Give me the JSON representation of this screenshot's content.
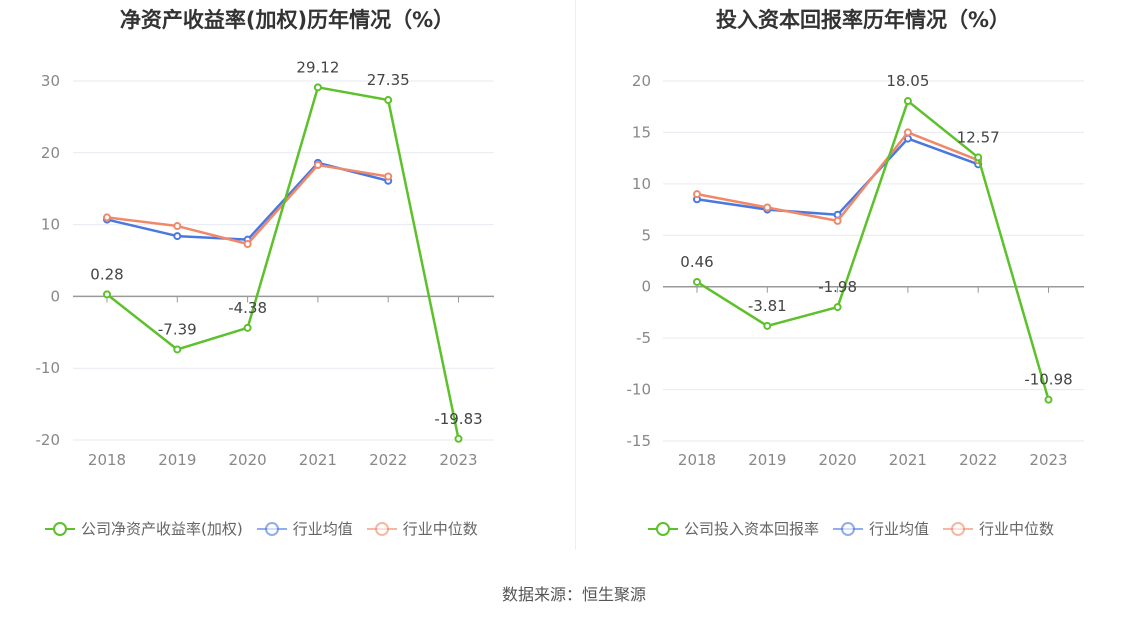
{
  "chart_data": [
    {
      "type": "line",
      "title": "净资产收益率(加权)历年情况（%）",
      "categories": [
        "2018",
        "2019",
        "2020",
        "2021",
        "2022",
        "2023"
      ],
      "ylim": [
        -20,
        30
      ],
      "yticks": [
        -20,
        -10,
        0,
        10,
        20,
        30
      ],
      "grid": true,
      "legend_position": "bottom",
      "series": [
        {
          "name": "公司净资产收益率(加权)",
          "color": "#5cc12a",
          "values": [
            0.28,
            -7.39,
            -4.38,
            29.12,
            27.35,
            -19.83
          ],
          "labels": [
            "0.28",
            "-7.39",
            "-4.38",
            "29.12",
            "27.35",
            "-19.83"
          ]
        },
        {
          "name": "行业均值",
          "color": "#4a78e0",
          "values": [
            10.7,
            8.4,
            7.9,
            18.6,
            16.1,
            null
          ]
        },
        {
          "name": "行业中位数",
          "color": "#f0896a",
          "values": [
            11.0,
            9.8,
            7.3,
            18.3,
            16.7,
            null
          ]
        }
      ]
    },
    {
      "type": "line",
      "title": "投入资本回报率历年情况（%）",
      "categories": [
        "2018",
        "2019",
        "2020",
        "2021",
        "2022",
        "2023"
      ],
      "ylim": [
        -15,
        20
      ],
      "yticks": [
        -15,
        -10,
        -5,
        0,
        5,
        10,
        15,
        20
      ],
      "grid": true,
      "legend_position": "bottom",
      "series": [
        {
          "name": "公司投入资本回报率",
          "color": "#5cc12a",
          "values": [
            0.46,
            -3.81,
            -1.98,
            18.05,
            12.57,
            -10.98
          ],
          "labels": [
            "0.46",
            "-3.81",
            "-1.98",
            "18.05",
            "12.57",
            "-10.98"
          ]
        },
        {
          "name": "行业均值",
          "color": "#4a78e0",
          "values": [
            8.5,
            7.5,
            7.0,
            14.4,
            11.9,
            null
          ]
        },
        {
          "name": "行业中位数",
          "color": "#f0896a",
          "values": [
            9.0,
            7.7,
            6.4,
            15.0,
            12.3,
            null
          ]
        }
      ]
    }
  ],
  "source": "数据来源：恒生聚源"
}
